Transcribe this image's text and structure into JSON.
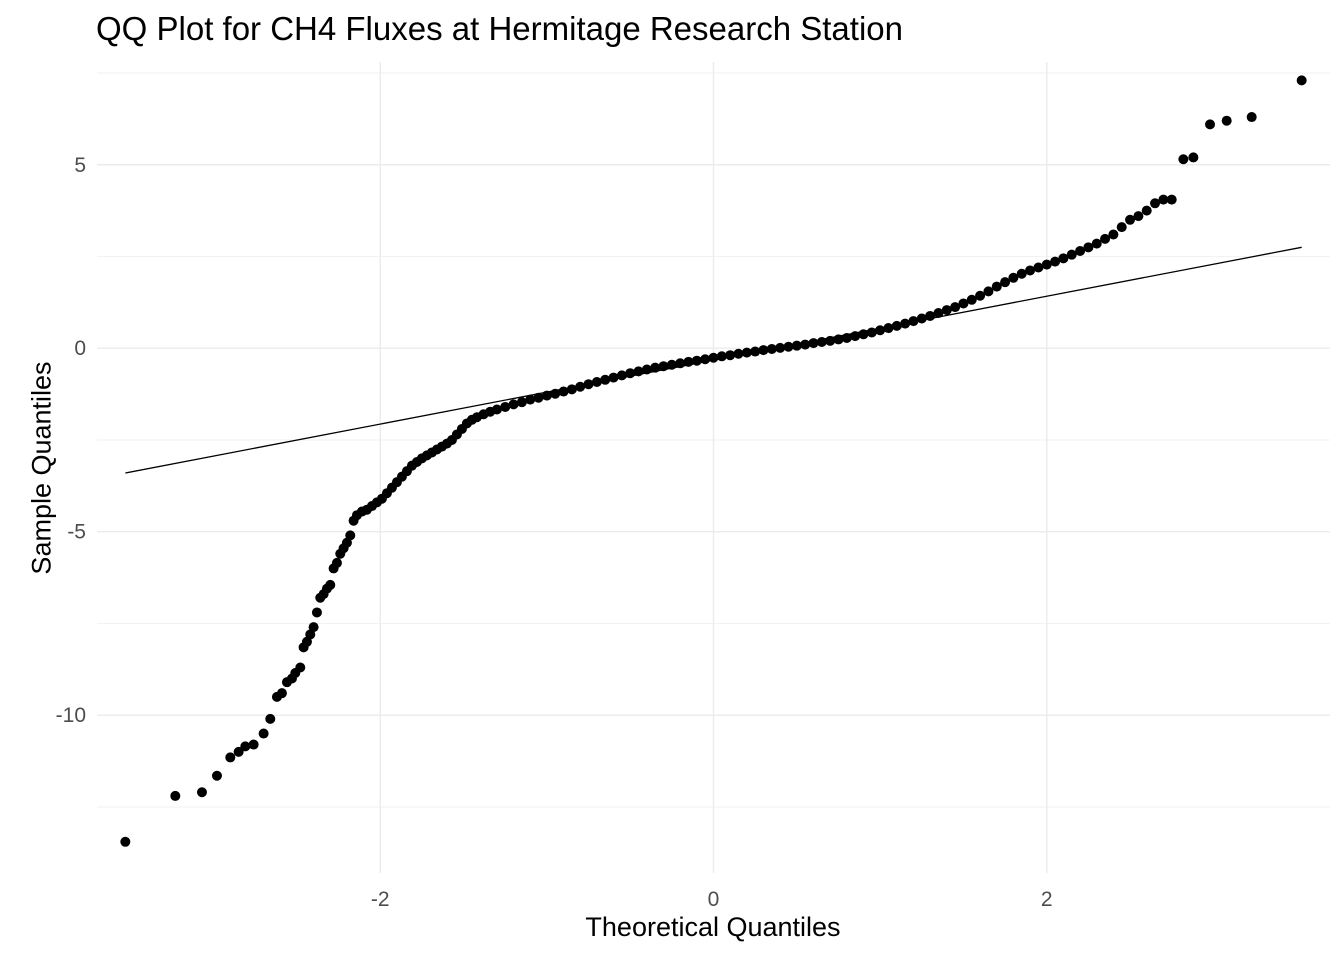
{
  "chart_data": {
    "type": "scatter",
    "title": "QQ Plot for CH4 Fluxes at Hermitage Research Station",
    "xlabel": "Theoretical Quantiles",
    "ylabel": "Sample Quantiles",
    "xlim": [
      -3.7,
      3.7
    ],
    "ylim": [
      -14.3,
      7.8
    ],
    "x_ticks": [
      -2,
      0,
      2
    ],
    "x_tick_labels": [
      "-2",
      "0",
      "2"
    ],
    "y_ticks": [
      -10,
      -5,
      0,
      5
    ],
    "y_tick_labels": [
      "-10",
      "-5",
      "0",
      "5"
    ],
    "grid": true,
    "reference_line": {
      "x": [
        -3.53,
        3.53
      ],
      "y": [
        -3.4,
        2.75
      ]
    },
    "series": [
      {
        "points": [
          [
            -3.53,
            -13.45
          ],
          [
            -3.23,
            -12.2
          ],
          [
            -3.07,
            -12.1
          ],
          [
            -2.98,
            -11.65
          ],
          [
            -2.9,
            -11.15
          ],
          [
            -2.85,
            -11.0
          ],
          [
            -2.81,
            -10.85
          ],
          [
            -2.76,
            -10.8
          ],
          [
            -2.7,
            -10.5
          ],
          [
            -2.66,
            -10.1
          ],
          [
            -2.62,
            -9.5
          ],
          [
            -2.59,
            -9.4
          ],
          [
            -2.56,
            -9.1
          ],
          [
            -2.53,
            -9.0
          ],
          [
            -2.51,
            -8.85
          ],
          [
            -2.48,
            -8.7
          ],
          [
            -2.46,
            -8.15
          ],
          [
            -2.44,
            -8.0
          ],
          [
            -2.42,
            -7.8
          ],
          [
            -2.4,
            -7.6
          ],
          [
            -2.38,
            -7.2
          ],
          [
            -2.36,
            -6.8
          ],
          [
            -2.34,
            -6.7
          ],
          [
            -2.32,
            -6.55
          ],
          [
            -2.3,
            -6.45
          ],
          [
            -2.28,
            -6.0
          ],
          [
            -2.26,
            -5.85
          ],
          [
            -2.24,
            -5.6
          ],
          [
            -2.22,
            -5.45
          ],
          [
            -2.2,
            -5.3
          ],
          [
            -2.18,
            -5.1
          ],
          [
            -2.16,
            -4.7
          ],
          [
            -2.14,
            -4.55
          ],
          [
            -2.11,
            -4.45
          ],
          [
            -2.08,
            -4.4
          ],
          [
            -2.05,
            -4.3
          ],
          [
            -2.02,
            -4.2
          ],
          [
            -1.99,
            -4.1
          ],
          [
            -1.96,
            -3.95
          ],
          [
            -1.93,
            -3.8
          ],
          [
            -1.9,
            -3.65
          ],
          [
            -1.87,
            -3.5
          ],
          [
            -1.84,
            -3.35
          ],
          [
            -1.81,
            -3.2
          ],
          [
            -1.78,
            -3.1
          ],
          [
            -1.75,
            -3.0
          ],
          [
            -1.72,
            -2.92
          ],
          [
            -1.69,
            -2.84
          ],
          [
            -1.66,
            -2.76
          ],
          [
            -1.63,
            -2.68
          ],
          [
            -1.6,
            -2.6
          ],
          [
            -1.57,
            -2.5
          ],
          [
            -1.54,
            -2.35
          ],
          [
            -1.51,
            -2.2
          ],
          [
            -1.48,
            -2.05
          ],
          [
            -1.45,
            -1.95
          ],
          [
            -1.42,
            -1.88
          ],
          [
            -1.38,
            -1.8
          ],
          [
            -1.34,
            -1.73
          ],
          [
            -1.3,
            -1.67
          ],
          [
            -1.25,
            -1.6
          ],
          [
            -1.2,
            -1.53
          ],
          [
            -1.15,
            -1.47
          ],
          [
            -1.1,
            -1.4
          ],
          [
            -1.05,
            -1.35
          ],
          [
            -1.0,
            -1.29
          ],
          [
            -0.95,
            -1.24
          ],
          [
            -0.9,
            -1.18
          ],
          [
            -0.85,
            -1.12
          ],
          [
            -0.8,
            -1.05
          ],
          [
            -0.75,
            -0.98
          ],
          [
            -0.7,
            -0.92
          ],
          [
            -0.65,
            -0.86
          ],
          [
            -0.6,
            -0.8
          ],
          [
            -0.55,
            -0.74
          ],
          [
            -0.5,
            -0.68
          ],
          [
            -0.45,
            -0.63
          ],
          [
            -0.4,
            -0.58
          ],
          [
            -0.35,
            -0.53
          ],
          [
            -0.3,
            -0.49
          ],
          [
            -0.25,
            -0.45
          ],
          [
            -0.2,
            -0.41
          ],
          [
            -0.15,
            -0.37
          ],
          [
            -0.1,
            -0.34
          ],
          [
            -0.05,
            -0.3
          ],
          [
            0.0,
            -0.26
          ],
          [
            0.05,
            -0.22
          ],
          [
            0.1,
            -0.19
          ],
          [
            0.15,
            -0.15
          ],
          [
            0.2,
            -0.12
          ],
          [
            0.25,
            -0.09
          ],
          [
            0.3,
            -0.05
          ],
          [
            0.35,
            -0.02
          ],
          [
            0.4,
            0.01
          ],
          [
            0.45,
            0.04
          ],
          [
            0.5,
            0.07
          ],
          [
            0.55,
            0.1
          ],
          [
            0.6,
            0.14
          ],
          [
            0.65,
            0.17
          ],
          [
            0.7,
            0.2
          ],
          [
            0.75,
            0.24
          ],
          [
            0.8,
            0.28
          ],
          [
            0.85,
            0.33
          ],
          [
            0.9,
            0.38
          ],
          [
            0.95,
            0.43
          ],
          [
            1.0,
            0.49
          ],
          [
            1.05,
            0.55
          ],
          [
            1.1,
            0.61
          ],
          [
            1.15,
            0.67
          ],
          [
            1.2,
            0.74
          ],
          [
            1.25,
            0.81
          ],
          [
            1.3,
            0.88
          ],
          [
            1.35,
            0.96
          ],
          [
            1.4,
            1.04
          ],
          [
            1.45,
            1.12
          ],
          [
            1.5,
            1.22
          ],
          [
            1.55,
            1.32
          ],
          [
            1.6,
            1.43
          ],
          [
            1.65,
            1.55
          ],
          [
            1.7,
            1.68
          ],
          [
            1.75,
            1.8
          ],
          [
            1.8,
            1.92
          ],
          [
            1.85,
            2.03
          ],
          [
            1.9,
            2.12
          ],
          [
            1.95,
            2.2
          ],
          [
            2.0,
            2.28
          ],
          [
            2.05,
            2.36
          ],
          [
            2.1,
            2.45
          ],
          [
            2.15,
            2.55
          ],
          [
            2.2,
            2.65
          ],
          [
            2.25,
            2.75
          ],
          [
            2.3,
            2.85
          ],
          [
            2.35,
            2.98
          ],
          [
            2.4,
            3.1
          ],
          [
            2.45,
            3.3
          ],
          [
            2.5,
            3.5
          ],
          [
            2.55,
            3.6
          ],
          [
            2.6,
            3.75
          ],
          [
            2.65,
            3.95
          ],
          [
            2.7,
            4.05
          ],
          [
            2.75,
            4.05
          ],
          [
            2.82,
            5.15
          ],
          [
            2.88,
            5.2
          ],
          [
            2.98,
            6.1
          ],
          [
            3.08,
            6.2
          ],
          [
            3.23,
            6.3
          ],
          [
            3.53,
            7.3
          ]
        ]
      }
    ]
  }
}
